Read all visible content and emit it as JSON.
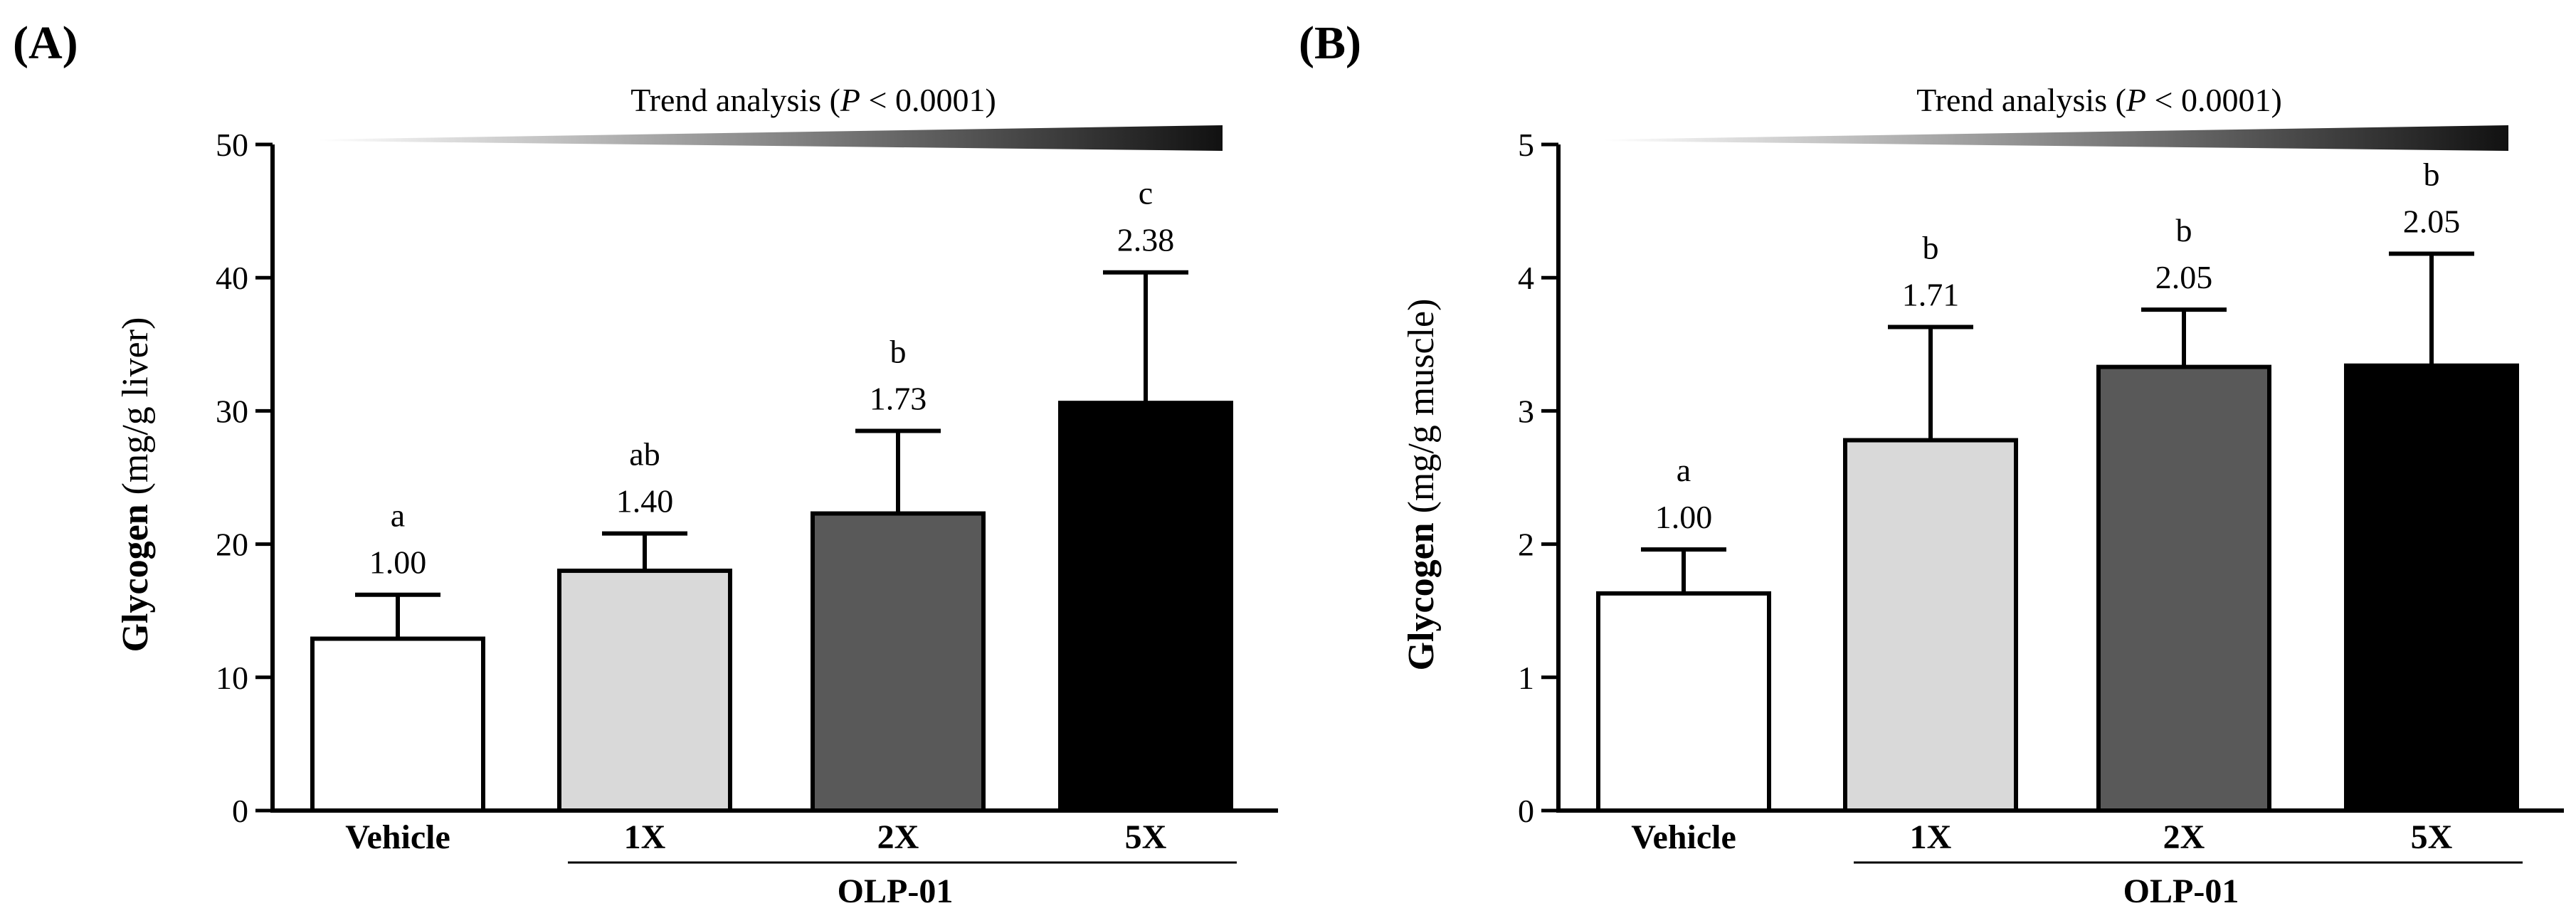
{
  "chart_data": [
    {
      "type": "bar",
      "panel_label": "(A)",
      "trend_label": "Trend analysis (",
      "trend_p": "P",
      "trend_tail": " < 0.0001)",
      "ylabel_bold": "Glycogen",
      "ylabel_rest": " (mg/g liver)",
      "ylim": [
        0,
        50
      ],
      "yticks": [
        0,
        10,
        20,
        30,
        40,
        50
      ],
      "categories": [
        "Vehicle",
        "1X",
        "2X",
        "5X"
      ],
      "group_label": "OLP-01",
      "values": [
        12.9,
        18.0,
        22.3,
        30.6
      ],
      "errors": [
        3.3,
        2.8,
        6.2,
        9.8
      ],
      "letters": [
        "a",
        "ab",
        "b",
        "c"
      ],
      "fold_labels": [
        "1.00",
        "1.40",
        "1.73",
        "2.38"
      ],
      "bar_colors": [
        "#ffffff",
        "#d9d9d9",
        "#595959",
        "#000000"
      ]
    },
    {
      "type": "bar",
      "panel_label": "(B)",
      "trend_label": "Trend analysis (",
      "trend_p": "P",
      "trend_tail": " < 0.0001)",
      "ylabel_bold": "Glycogen",
      "ylabel_rest": " (mg/g muscle)",
      "ylim": [
        0,
        5
      ],
      "yticks": [
        0,
        1,
        2,
        3,
        4,
        5
      ],
      "categories": [
        "Vehicle",
        "1X",
        "2X",
        "5X"
      ],
      "group_label": "OLP-01",
      "values": [
        1.63,
        2.78,
        3.33,
        3.34
      ],
      "errors": [
        0.33,
        0.85,
        0.43,
        0.84
      ],
      "letters": [
        "a",
        "b",
        "b",
        "b"
      ],
      "fold_labels": [
        "1.00",
        "1.71",
        "2.05",
        "2.05"
      ],
      "bar_colors": [
        "#ffffff",
        "#d9d9d9",
        "#595959",
        "#000000"
      ]
    }
  ]
}
